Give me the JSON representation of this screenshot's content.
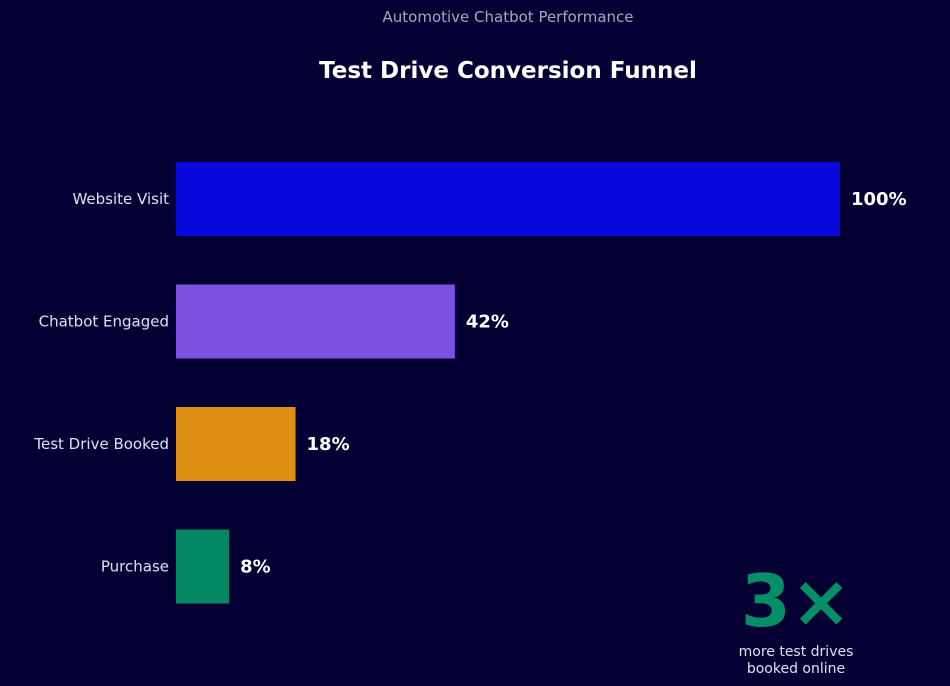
{
  "chart_data": {
    "type": "bar",
    "orientation": "horizontal",
    "subtitle": "Automotive Chatbot Performance",
    "title": "Test Drive Conversion Funnel",
    "categories": [
      "Website Visit",
      "Chatbot Engaged",
      "Test Drive Booked",
      "Purchase"
    ],
    "values": [
      100,
      42,
      18,
      8
    ],
    "value_labels": [
      "100%",
      "42%",
      "18%",
      "8%"
    ],
    "colors": [
      "#0808dc",
      "#7b52e0",
      "#dc8f12",
      "#038863"
    ],
    "xlim": [
      0,
      100
    ],
    "grid": false,
    "annotation": {
      "value": "3×",
      "line1": "more test drives",
      "line2": "booked online",
      "color": "#048f69"
    }
  },
  "background_color": "#050033"
}
